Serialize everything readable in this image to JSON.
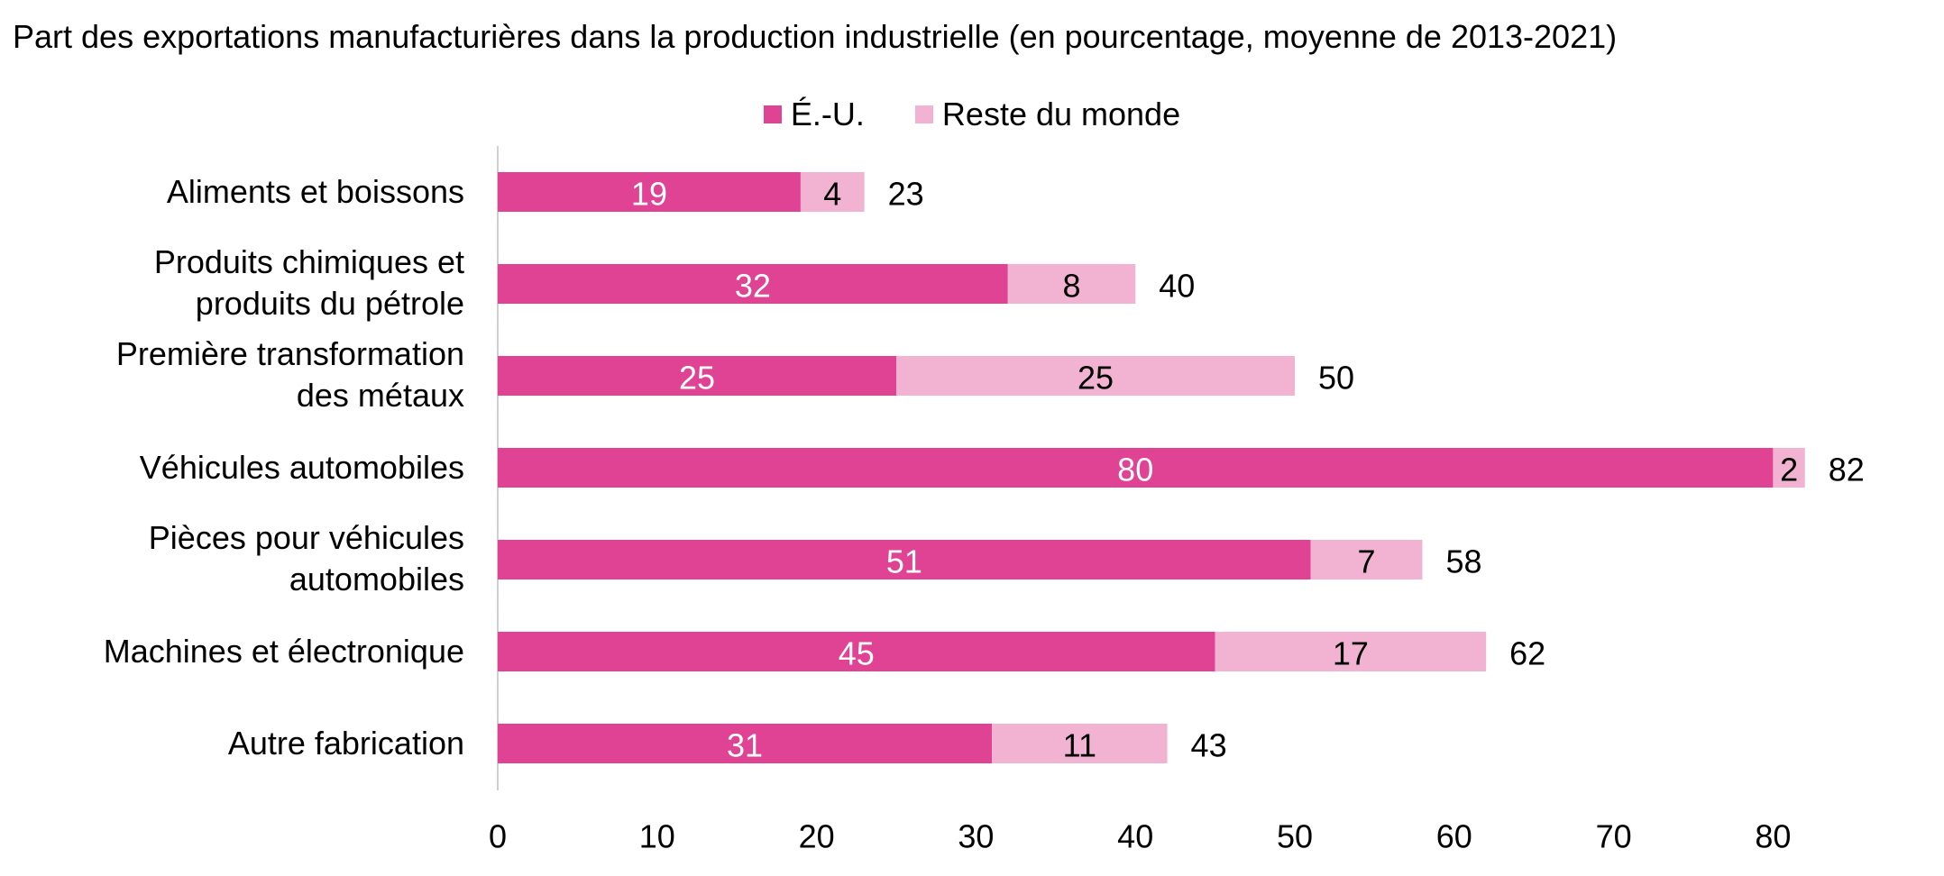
{
  "chart_data": {
    "type": "bar",
    "orientation": "horizontal",
    "stacked": true,
    "title": "Part des exportations manufacturières dans la production industrielle (en pourcentage, moyenne de 2013-2021)",
    "xlabel": "",
    "ylabel": "",
    "xlim": [
      0,
      88
    ],
    "xticks": [
      0,
      10,
      20,
      30,
      40,
      50,
      60,
      70,
      80
    ],
    "grid": false,
    "legend_position": "top-center",
    "categories": [
      [
        "Aliments et boissons"
      ],
      [
        "Produits chimiques et",
        "produits du pétrole"
      ],
      [
        "Première transformation",
        "des métaux"
      ],
      [
        "Véhicules automobiles"
      ],
      [
        "Pièces pour véhicules",
        "automobiles"
      ],
      [
        "Machines et électronique"
      ],
      [
        "Autre fabrication"
      ]
    ],
    "series": [
      {
        "name": "É.-U.",
        "color": "#e04393",
        "label_color": "#ffffff",
        "values": [
          19,
          32,
          25,
          80,
          51,
          45,
          31
        ]
      },
      {
        "name": "Reste du monde",
        "color": "#f2b3d3",
        "label_color": "#000000",
        "values": [
          4,
          8,
          25,
          2,
          7,
          17,
          11
        ]
      }
    ],
    "totals": [
      23,
      40,
      50,
      82,
      58,
      62,
      43
    ]
  }
}
